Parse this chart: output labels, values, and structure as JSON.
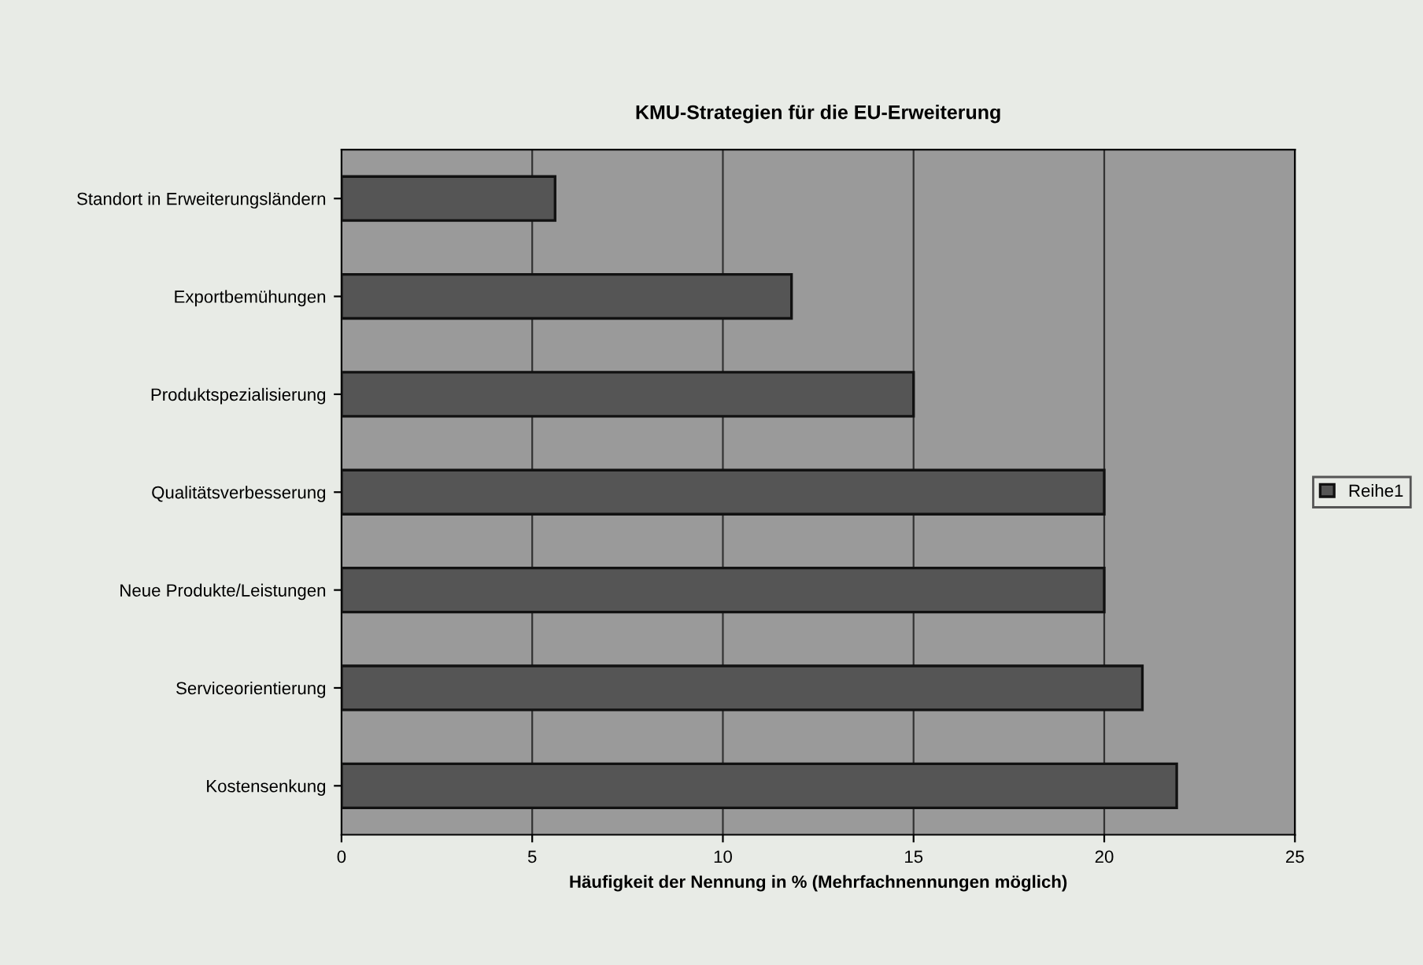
{
  "chart_data": {
    "type": "bar",
    "orientation": "horizontal",
    "title": "KMU-Strategien für die EU-Erweiterung",
    "xlabel": "Häufigkeit der Nennung in % (Mehrfachnennungen möglich)",
    "categories": [
      "Standort in Erweiterungsländern",
      "Exportbemühungen",
      "Produktspezialisierung",
      "Qualitätsverbesserung",
      "Neue Produkte/Leistungen",
      "Serviceorientierung",
      "Kostensenkung"
    ],
    "series": [
      {
        "name": "Reihe1",
        "color": "#555555",
        "values": [
          5.6,
          11.8,
          15.0,
          20.0,
          20.0,
          21.0,
          21.9
        ]
      }
    ],
    "xlim": [
      0,
      25
    ],
    "xticks": [
      0,
      5,
      10,
      15,
      20,
      25
    ],
    "grid": "x",
    "legend": "right"
  }
}
